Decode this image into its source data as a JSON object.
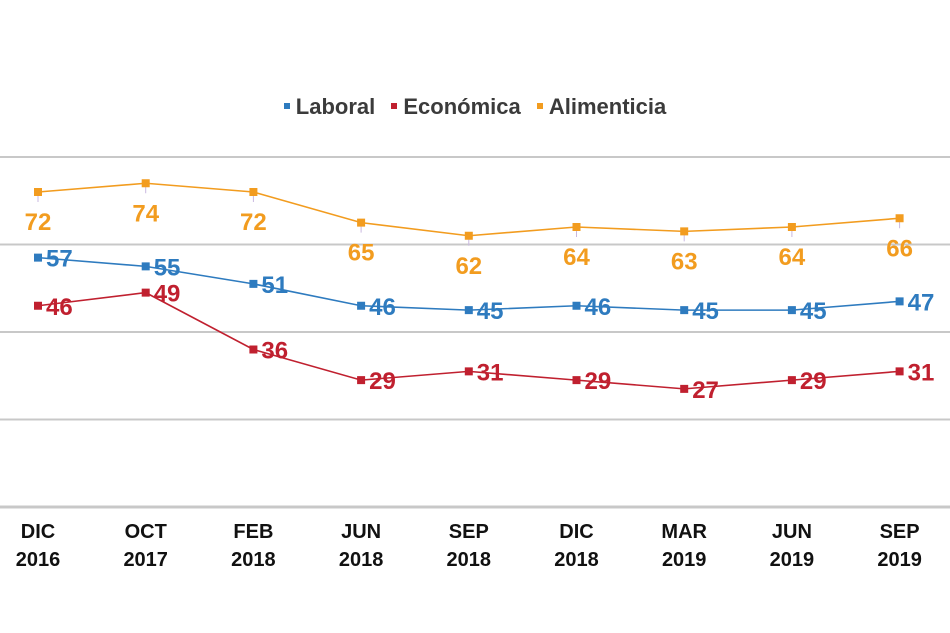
{
  "chart_data": {
    "type": "line",
    "title": "",
    "xlabel": "",
    "ylabel": "",
    "ylim": [
      0,
      80
    ],
    "gridlines": [
      0,
      20,
      40,
      60,
      80
    ],
    "grid": true,
    "legend_position": "top-center",
    "categories": [
      [
        "DIC",
        "2016"
      ],
      [
        "OCT",
        "2017"
      ],
      [
        "FEB",
        "2018"
      ],
      [
        "JUN",
        "2018"
      ],
      [
        "SEP",
        "2018"
      ],
      [
        "DIC",
        "2018"
      ],
      [
        "MAR",
        "2019"
      ],
      [
        "JUN",
        "2019"
      ],
      [
        "SEP",
        "2019"
      ]
    ],
    "series": [
      {
        "name": "Laboral",
        "color": "#2e7bbf",
        "values": [
          57,
          55,
          51,
          46,
          45,
          46,
          45,
          45,
          47
        ]
      },
      {
        "name": "Económica",
        "color": "#c0202f",
        "values": [
          46,
          49,
          36,
          29,
          31,
          29,
          27,
          29,
          31
        ]
      },
      {
        "name": "Alimenticia",
        "color": "#f29c1f",
        "values": [
          72,
          74,
          72,
          65,
          62,
          64,
          63,
          64,
          66
        ]
      }
    ]
  }
}
